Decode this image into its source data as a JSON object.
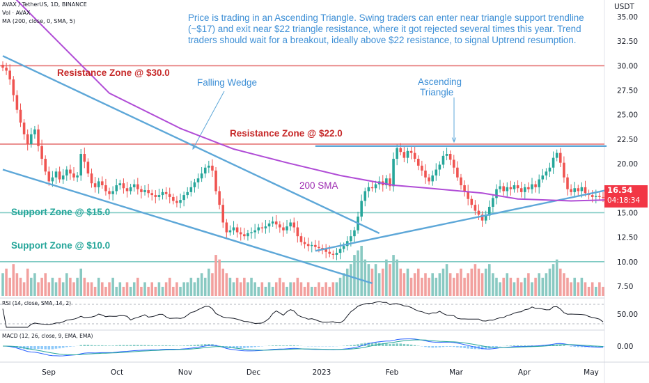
{
  "header": {
    "symbol_line": "AVAX / TetherUS, 1D, BINANCE",
    "volume_line": "Vol · AVAX",
    "ma_line": "MA (200, close, 0, SMA, 5)",
    "currency": "USDT"
  },
  "annotation": "Price is trading in an Ascending Triangle. Swing traders can enter near triangle support trendline (~$17) and exit near $22 triangle resistance,  where it got rejected several times this year. Trend traders should wait for a breakout, ideally above $22 resistance, to signal Uptrend resumption.",
  "labels": {
    "resistance_30": "Resistance Zone @ $30.0",
    "resistance_22": "Resistance Zone @ $22.0",
    "support_15": "Support Zone @ $15.0",
    "support_10": "Support Zone @ $10.0",
    "falling_wedge": "Falling Wedge",
    "ascending_triangle_1": "Ascending",
    "ascending_triangle_2": "Triangle",
    "sma_label": "200 SMA"
  },
  "price_tag": {
    "price": "16.54",
    "countdown": "04:18:34",
    "color": "#f23645"
  },
  "rsi_panel": {
    "title": "RSI (14, close, SMA, 14, 2)",
    "tick": "50.00"
  },
  "macd_panel": {
    "title": "MACD (12, 26, close, 9, EMA, EMA)",
    "tick": "0.00"
  },
  "colors": {
    "up": "#26a69a",
    "down": "#ef5350",
    "resistance": "#e57373",
    "support": "#80cbc4",
    "trend": "#5da7d8",
    "sma": "#b04cd6",
    "annotation": "#3d8fd6"
  },
  "chart_data": {
    "type": "candlestick",
    "x_ticks": [
      "Sep",
      "Oct",
      "Nov",
      "Dec",
      "2023",
      "Feb",
      "Mar",
      "Apr",
      "May"
    ],
    "y_ticks": [
      "35.00",
      "32.50",
      "30.00",
      "27.50",
      "25.00",
      "22.50",
      "20.00",
      "17.50",
      "15.00",
      "12.50",
      "10.00",
      "7.50"
    ],
    "ylim": [
      6.5,
      36
    ],
    "levels": [
      {
        "name": "Resistance Zone @ $30.0",
        "value": 30.0
      },
      {
        "name": "Resistance Zone @ $22.0",
        "value": 22.0
      },
      {
        "name": "Support Zone @ $15.0",
        "value": 15.0
      },
      {
        "name": "Support Zone @ $10.0",
        "value": 10.0
      }
    ],
    "close": [
      29.8,
      29.5,
      28.6,
      27.0,
      25.5,
      24.2,
      23.0,
      22.0,
      23.0,
      23.5,
      21.8,
      20.5,
      19.2,
      18.2,
      18.6,
      19.2,
      18.4,
      18.8,
      19.4,
      19.0,
      18.6,
      18.8,
      21.0,
      20.2,
      19.0,
      18.0,
      17.6,
      18.2,
      17.8,
      17.2,
      16.9,
      17.2,
      17.8,
      18.0,
      17.5,
      17.2,
      17.6,
      17.9,
      17.4,
      17.1,
      17.3,
      17.0,
      16.8,
      16.6,
      16.8,
      17.1,
      16.9,
      16.6,
      16.2,
      16.0,
      16.3,
      16.8,
      17.1,
      17.6,
      18.1,
      18.5,
      19.0,
      19.6,
      19.8,
      19.3,
      17.2,
      15.8,
      14.0,
      13.0,
      13.2,
      13.5,
      13.0,
      12.8,
      12.6,
      12.9,
      13.0,
      13.2,
      13.5,
      13.4,
      13.6,
      13.9,
      14.1,
      13.8,
      13.5,
      13.2,
      13.6,
      14.0,
      13.5,
      12.6,
      12.0,
      11.8,
      11.6,
      11.7,
      11.5,
      11.4,
      11.3,
      11.0,
      10.8,
      10.7,
      10.9,
      11.3,
      11.6,
      12.1,
      12.6,
      13.2,
      14.6,
      16.2,
      17.2,
      17.6,
      17.5,
      17.9,
      18.2,
      17.8,
      18.5,
      17.7,
      20.5,
      21.6,
      21.2,
      20.6,
      21.3,
      21.1,
      20.5,
      19.8,
      19.3,
      18.6,
      18.2,
      18.8,
      19.4,
      19.9,
      20.8,
      21.0,
      20.4,
      19.6,
      18.6,
      17.8,
      17.2,
      16.4,
      15.8,
      15.2,
      14.8,
      14.2,
      14.7,
      15.6,
      16.5,
      17.4,
      17.7,
      17.2,
      17.6,
      17.4,
      17.8,
      17.5,
      17.1,
      17.6,
      17.4,
      17.9,
      17.6,
      18.4,
      18.8,
      19.2,
      19.6,
      20.6,
      21.1,
      20.1,
      18.6,
      17.4,
      17.1,
      17.5,
      17.2,
      17.6,
      17.0,
      16.8,
      16.6,
      16.7,
      16.6,
      16.54
    ],
    "volume": [
      5,
      6,
      4,
      7,
      5,
      4,
      3,
      6,
      4,
      5,
      3,
      4,
      5,
      3,
      4,
      3,
      4,
      3,
      5,
      4,
      3,
      4,
      6,
      4,
      3,
      3,
      2,
      4,
      3,
      2,
      3,
      4,
      2,
      3,
      2,
      3,
      2,
      3,
      4,
      2,
      3,
      2,
      3,
      2,
      3,
      2,
      3,
      4,
      2,
      3,
      2,
      3,
      3,
      4,
      3,
      4,
      5,
      4,
      6,
      5,
      9,
      8,
      6,
      5,
      4,
      3,
      4,
      3,
      4,
      3,
      4,
      3,
      2,
      3,
      2,
      3,
      2,
      3,
      4,
      3,
      2,
      3,
      3,
      4,
      3,
      2,
      3,
      2,
      2,
      3,
      2,
      3,
      2,
      3,
      3,
      4,
      5,
      6,
      7,
      9,
      10,
      11,
      8,
      7,
      6,
      7,
      5,
      6,
      8,
      7,
      9,
      8,
      6,
      5,
      6,
      4,
      5,
      6,
      4,
      5,
      4,
      5,
      4,
      5,
      6,
      7,
      5,
      4,
      5,
      6,
      4,
      5,
      6,
      7,
      6,
      5,
      6,
      7,
      5,
      4,
      3,
      4,
      5,
      4,
      3,
      4,
      3,
      4,
      5,
      3,
      4,
      5,
      4,
      5,
      6,
      7,
      8,
      6,
      5,
      4,
      3,
      4,
      3,
      4,
      3,
      2,
      3,
      2,
      3,
      2
    ],
    "sma200": [
      [
        0,
        45.0
      ],
      [
        30,
        27.2
      ],
      [
        50,
        23.6
      ],
      [
        65,
        21.5
      ],
      [
        80,
        20.1
      ],
      [
        95,
        18.8
      ],
      [
        110,
        17.8
      ],
      [
        120,
        17.5
      ],
      [
        135,
        17.0
      ],
      [
        145,
        16.4
      ],
      [
        160,
        16.2
      ],
      [
        170,
        16.3
      ]
    ]
  }
}
